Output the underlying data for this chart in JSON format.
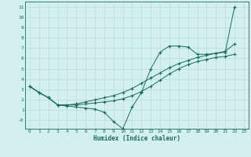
{
  "xlabel": "Humidex (Indice chaleur)",
  "bg_color": "#d4f0ec",
  "grid_color": "#b8ddd8",
  "line_color": "#1a6b5a",
  "xlim": [
    -0.5,
    23.5
  ],
  "ylim": [
    -0.8,
    11.5
  ],
  "xticks": [
    0,
    1,
    2,
    3,
    4,
    5,
    6,
    7,
    8,
    9,
    10,
    11,
    12,
    13,
    14,
    15,
    16,
    17,
    18,
    19,
    20,
    21,
    22,
    23
  ],
  "yticks": [
    0,
    1,
    2,
    3,
    4,
    5,
    6,
    7,
    8,
    9,
    10,
    11
  ],
  "ytick_labels": [
    "-0",
    "1",
    "2",
    "3",
    "4",
    "5",
    "6",
    "7",
    "8",
    "9",
    "10",
    "11"
  ],
  "series": [
    {
      "x": [
        0,
        1,
        2,
        3,
        4,
        5,
        6,
        7,
        8,
        9,
        10,
        11,
        12,
        13,
        14,
        15,
        16,
        17,
        18,
        19,
        20,
        21,
        22
      ],
      "y": [
        3.3,
        2.7,
        2.2,
        1.5,
        1.4,
        1.3,
        1.2,
        1.1,
        0.8,
        -0.1,
        -0.8,
        1.3,
        2.7,
        5.0,
        6.6,
        7.2,
        7.2,
        7.1,
        6.4,
        6.4,
        6.5,
        6.6,
        11.0
      ]
    },
    {
      "x": [
        0,
        1,
        2,
        3,
        4,
        5,
        6,
        7,
        8,
        9,
        10,
        11,
        12,
        13,
        14,
        15,
        16,
        17,
        18,
        19,
        20,
        21,
        22
      ],
      "y": [
        3.3,
        2.7,
        2.2,
        1.5,
        1.5,
        1.5,
        1.6,
        1.7,
        1.8,
        1.9,
        2.1,
        2.4,
        2.8,
        3.3,
        3.9,
        4.5,
        5.0,
        5.4,
        5.7,
        5.9,
        6.1,
        6.2,
        6.4
      ]
    },
    {
      "x": [
        0,
        1,
        2,
        3,
        4,
        5,
        6,
        7,
        8,
        9,
        10,
        11,
        12,
        13,
        14,
        15,
        16,
        17,
        18,
        19,
        20,
        21,
        22
      ],
      "y": [
        3.3,
        2.7,
        2.2,
        1.5,
        1.5,
        1.6,
        1.8,
        2.0,
        2.2,
        2.4,
        2.7,
        3.1,
        3.6,
        4.1,
        4.6,
        5.1,
        5.5,
        5.8,
        6.1,
        6.3,
        6.5,
        6.7,
        7.4
      ]
    }
  ]
}
